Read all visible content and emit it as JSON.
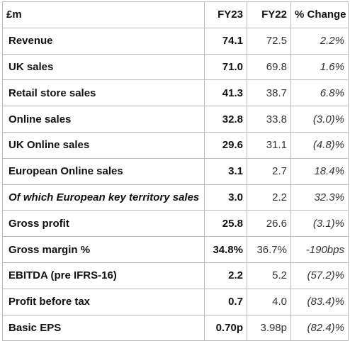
{
  "table": {
    "headers": {
      "label": "£m",
      "fy23": "FY23",
      "fy22": "FY22",
      "change": "% Change"
    },
    "rows": [
      {
        "label": "Revenue",
        "fy23": "74.1",
        "fy22": "72.5",
        "change": "2.2%",
        "italic": false
      },
      {
        "label": "UK sales",
        "fy23": "71.0",
        "fy22": "69.8",
        "change": "1.6%",
        "italic": false
      },
      {
        "label": "Retail store sales",
        "fy23": "41.3",
        "fy22": "38.7",
        "change": "6.8%",
        "italic": false
      },
      {
        "label": "Online sales",
        "fy23": "32.8",
        "fy22": "33.8",
        "change": "(3.0)%",
        "italic": false
      },
      {
        "label": "UK Online sales",
        "fy23": "29.6",
        "fy22": "31.1",
        "change": "(4.8)%",
        "italic": false
      },
      {
        "label": "European Online sales",
        "fy23": "3.1",
        "fy22": "2.7",
        "change": "18.4%",
        "italic": false
      },
      {
        "label": "Of which European key territory sales",
        "fy23": "3.0",
        "fy22": "2.2",
        "change": "32.3%",
        "italic": true
      },
      {
        "label": "Gross profit",
        "fy23": "25.8",
        "fy22": "26.6",
        "change": "(3.1)%",
        "italic": false
      },
      {
        "label": "Gross margin %",
        "fy23": "34.8%",
        "fy22": "36.7%",
        "change": "-190bps",
        "italic": false
      },
      {
        "label": "EBITDA (pre IFRS-16)",
        "fy23": "2.2",
        "fy22": "5.2",
        "change": "(57.2)%",
        "italic": false
      },
      {
        "label": "Profit before tax",
        "fy23": "0.7",
        "fy22": "4.0",
        "change": "(83.4)%",
        "italic": false
      },
      {
        "label": "Basic EPS",
        "fy23": "0.70p",
        "fy22": "3.98p",
        "change": "(82.4)%",
        "italic": false
      }
    ]
  }
}
